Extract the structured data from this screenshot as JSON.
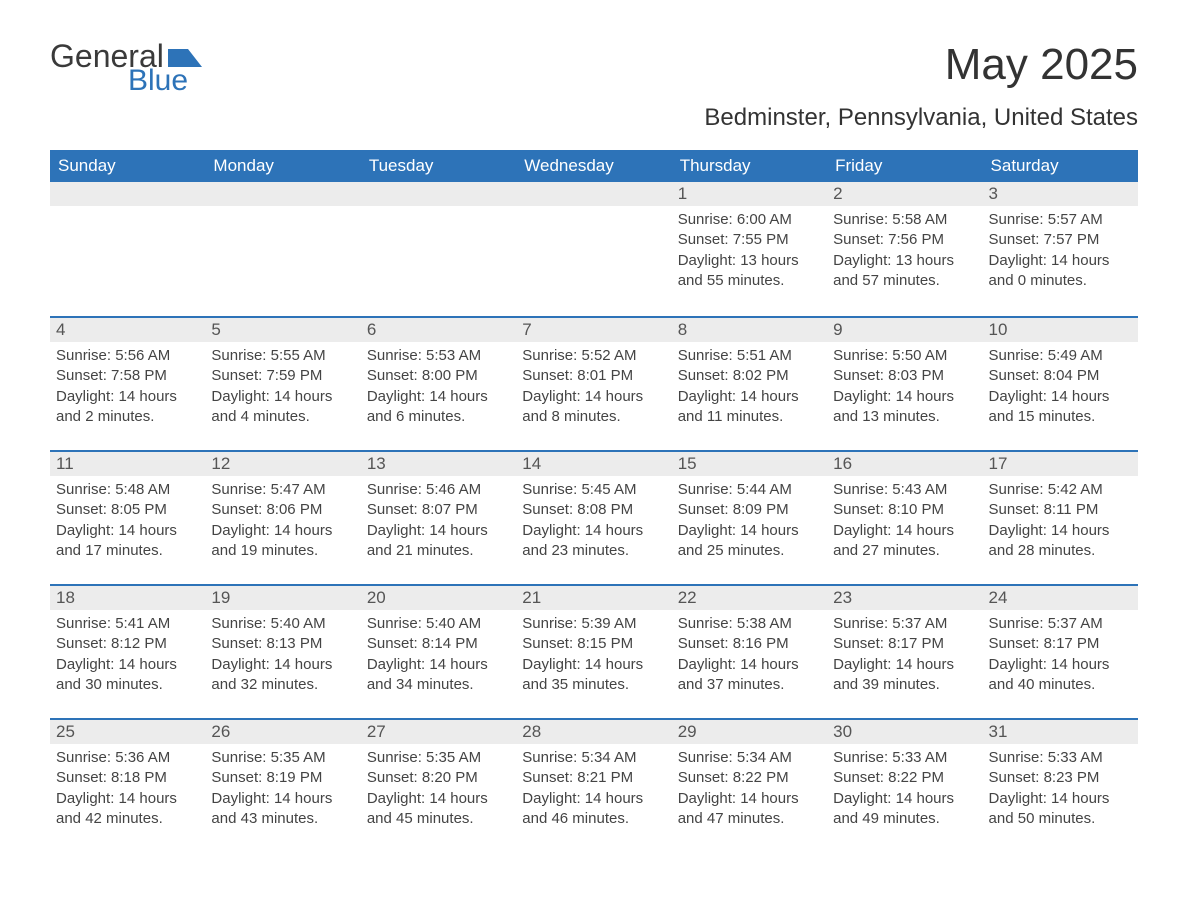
{
  "logo": {
    "text1": "General",
    "text2": "Blue",
    "flag_color": "#2d73b8"
  },
  "title": "May 2025",
  "location": "Bedminster, Pennsylvania, United States",
  "colors": {
    "header_bg": "#2d73b8",
    "header_text": "#ffffff",
    "daynum_bg": "#ececec",
    "row_divider": "#2d73b8",
    "body_text": "#444444",
    "page_bg": "#ffffff"
  },
  "weekdays": [
    "Sunday",
    "Monday",
    "Tuesday",
    "Wednesday",
    "Thursday",
    "Friday",
    "Saturday"
  ],
  "weeks": [
    [
      null,
      null,
      null,
      null,
      {
        "n": "1",
        "sr": "6:00 AM",
        "ss": "7:55 PM",
        "dl": "13 hours and 55 minutes."
      },
      {
        "n": "2",
        "sr": "5:58 AM",
        "ss": "7:56 PM",
        "dl": "13 hours and 57 minutes."
      },
      {
        "n": "3",
        "sr": "5:57 AM",
        "ss": "7:57 PM",
        "dl": "14 hours and 0 minutes."
      }
    ],
    [
      {
        "n": "4",
        "sr": "5:56 AM",
        "ss": "7:58 PM",
        "dl": "14 hours and 2 minutes."
      },
      {
        "n": "5",
        "sr": "5:55 AM",
        "ss": "7:59 PM",
        "dl": "14 hours and 4 minutes."
      },
      {
        "n": "6",
        "sr": "5:53 AM",
        "ss": "8:00 PM",
        "dl": "14 hours and 6 minutes."
      },
      {
        "n": "7",
        "sr": "5:52 AM",
        "ss": "8:01 PM",
        "dl": "14 hours and 8 minutes."
      },
      {
        "n": "8",
        "sr": "5:51 AM",
        "ss": "8:02 PM",
        "dl": "14 hours and 11 minutes."
      },
      {
        "n": "9",
        "sr": "5:50 AM",
        "ss": "8:03 PM",
        "dl": "14 hours and 13 minutes."
      },
      {
        "n": "10",
        "sr": "5:49 AM",
        "ss": "8:04 PM",
        "dl": "14 hours and 15 minutes."
      }
    ],
    [
      {
        "n": "11",
        "sr": "5:48 AM",
        "ss": "8:05 PM",
        "dl": "14 hours and 17 minutes."
      },
      {
        "n": "12",
        "sr": "5:47 AM",
        "ss": "8:06 PM",
        "dl": "14 hours and 19 minutes."
      },
      {
        "n": "13",
        "sr": "5:46 AM",
        "ss": "8:07 PM",
        "dl": "14 hours and 21 minutes."
      },
      {
        "n": "14",
        "sr": "5:45 AM",
        "ss": "8:08 PM",
        "dl": "14 hours and 23 minutes."
      },
      {
        "n": "15",
        "sr": "5:44 AM",
        "ss": "8:09 PM",
        "dl": "14 hours and 25 minutes."
      },
      {
        "n": "16",
        "sr": "5:43 AM",
        "ss": "8:10 PM",
        "dl": "14 hours and 27 minutes."
      },
      {
        "n": "17",
        "sr": "5:42 AM",
        "ss": "8:11 PM",
        "dl": "14 hours and 28 minutes."
      }
    ],
    [
      {
        "n": "18",
        "sr": "5:41 AM",
        "ss": "8:12 PM",
        "dl": "14 hours and 30 minutes."
      },
      {
        "n": "19",
        "sr": "5:40 AM",
        "ss": "8:13 PM",
        "dl": "14 hours and 32 minutes."
      },
      {
        "n": "20",
        "sr": "5:40 AM",
        "ss": "8:14 PM",
        "dl": "14 hours and 34 minutes."
      },
      {
        "n": "21",
        "sr": "5:39 AM",
        "ss": "8:15 PM",
        "dl": "14 hours and 35 minutes."
      },
      {
        "n": "22",
        "sr": "5:38 AM",
        "ss": "8:16 PM",
        "dl": "14 hours and 37 minutes."
      },
      {
        "n": "23",
        "sr": "5:37 AM",
        "ss": "8:17 PM",
        "dl": "14 hours and 39 minutes."
      },
      {
        "n": "24",
        "sr": "5:37 AM",
        "ss": "8:17 PM",
        "dl": "14 hours and 40 minutes."
      }
    ],
    [
      {
        "n": "25",
        "sr": "5:36 AM",
        "ss": "8:18 PM",
        "dl": "14 hours and 42 minutes."
      },
      {
        "n": "26",
        "sr": "5:35 AM",
        "ss": "8:19 PM",
        "dl": "14 hours and 43 minutes."
      },
      {
        "n": "27",
        "sr": "5:35 AM",
        "ss": "8:20 PM",
        "dl": "14 hours and 45 minutes."
      },
      {
        "n": "28",
        "sr": "5:34 AM",
        "ss": "8:21 PM",
        "dl": "14 hours and 46 minutes."
      },
      {
        "n": "29",
        "sr": "5:34 AM",
        "ss": "8:22 PM",
        "dl": "14 hours and 47 minutes."
      },
      {
        "n": "30",
        "sr": "5:33 AM",
        "ss": "8:22 PM",
        "dl": "14 hours and 49 minutes."
      },
      {
        "n": "31",
        "sr": "5:33 AM",
        "ss": "8:23 PM",
        "dl": "14 hours and 50 minutes."
      }
    ]
  ],
  "labels": {
    "sunrise": "Sunrise:",
    "sunset": "Sunset:",
    "daylight": "Daylight:"
  }
}
